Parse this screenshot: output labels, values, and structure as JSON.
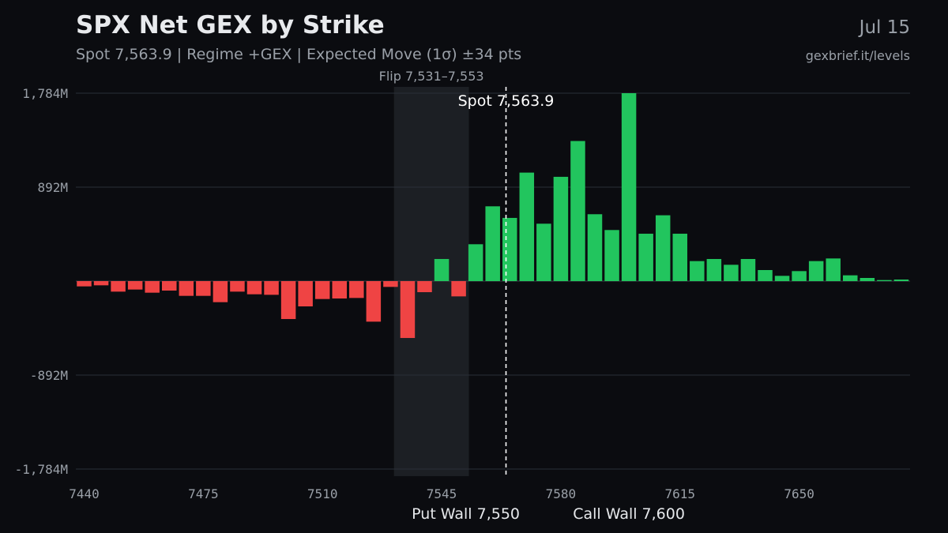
{
  "header": {
    "title": "SPX Net GEX by Strike",
    "subtitle": "Spot 7,563.9 | Regime +GEX | Expected Move (1σ) ±34 pts",
    "date": "Jul 15",
    "source": "gexbrief.it/levels"
  },
  "colors": {
    "positive": "#22c55e",
    "negative": "#ef4444",
    "grid": "#2a2f38",
    "flip_band": "#1c1f24",
    "text_muted": "#9aa0a8"
  },
  "chart_data": {
    "type": "bar",
    "title": "SPX Net GEX by Strike",
    "xlabel": "",
    "ylabel": "",
    "grid": true,
    "ylim": [
      -1784,
      1784
    ],
    "y_ticks": [
      1784,
      892,
      -892,
      -1784
    ],
    "y_tick_labels": [
      "1,784M",
      "892M",
      "-892M",
      "-1,784M"
    ],
    "x_ticks": [
      7440,
      7475,
      7510,
      7545,
      7580,
      7615,
      7650
    ],
    "x_tick_labels": [
      "7440",
      "7475",
      "7510",
      "7545",
      "7580",
      "7615",
      "7650"
    ],
    "units": "M",
    "x": [
      7440,
      7445,
      7450,
      7455,
      7460,
      7465,
      7470,
      7475,
      7480,
      7485,
      7490,
      7495,
      7500,
      7505,
      7510,
      7515,
      7520,
      7525,
      7530,
      7535,
      7540,
      7545,
      7550,
      7555,
      7560,
      7565,
      7570,
      7575,
      7580,
      7585,
      7590,
      7595,
      7600,
      7605,
      7610,
      7615,
      7620,
      7625,
      7630,
      7635,
      7640,
      7645,
      7650,
      7655,
      7660,
      7665,
      7670,
      7675,
      7680,
      7685
    ],
    "values": [
      -50,
      -40,
      -100,
      -80,
      -110,
      -90,
      -140,
      -140,
      -200,
      -100,
      -125,
      -130,
      -360,
      -240,
      -170,
      -165,
      -160,
      -385,
      -55,
      -540,
      -105,
      210,
      -145,
      350,
      710,
      600,
      1030,
      545,
      990,
      1330,
      635,
      485,
      1784,
      450,
      625,
      450,
      190,
      210,
      155,
      210,
      105,
      50,
      95,
      190,
      215,
      55,
      30,
      10,
      15,
      0
    ],
    "flip_zone": {
      "low": 7531,
      "high": 7553,
      "label": "Flip 7,531–7,553"
    },
    "spot": {
      "value": 7563.9,
      "label": "Spot 7,563.9"
    },
    "put_wall": {
      "value": 7550,
      "label": "Put Wall 7,550"
    },
    "call_wall": {
      "value": 7600,
      "label": "Call Wall 7,600"
    }
  }
}
